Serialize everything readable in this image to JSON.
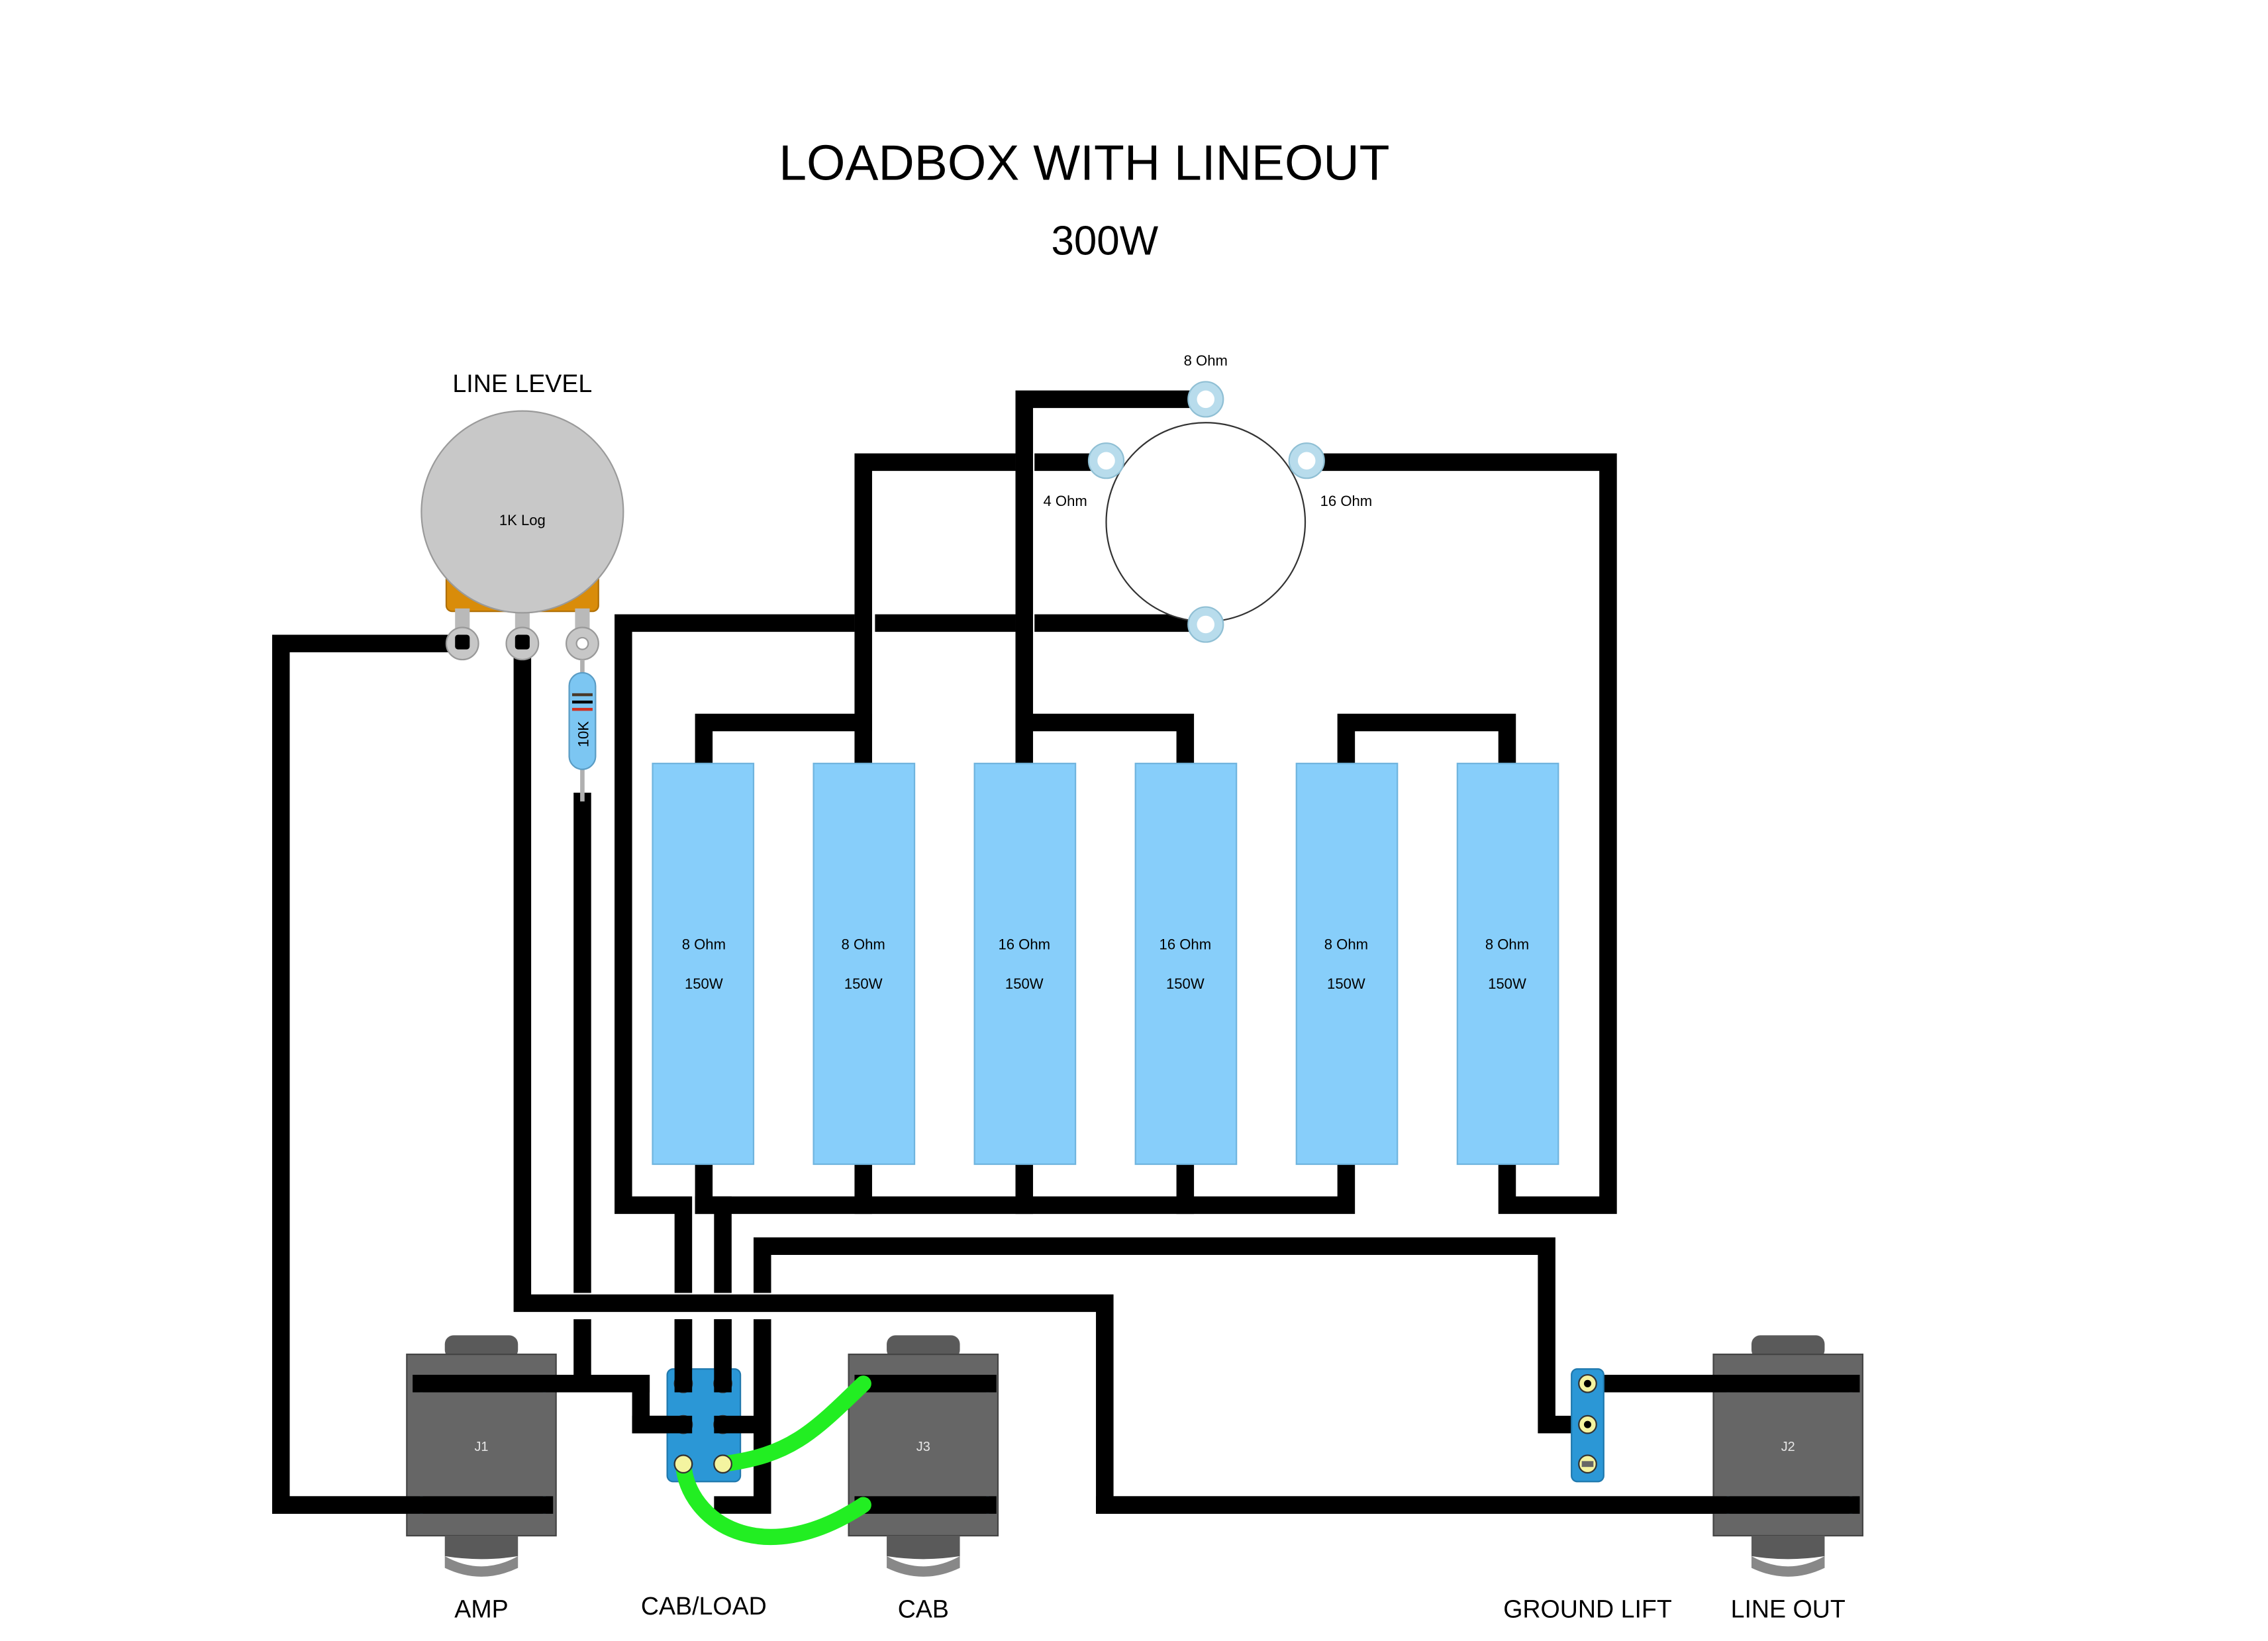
{
  "title": "LOADBOX WITH LINEOUT",
  "subtitle": "300W",
  "colors": {
    "wire": "#000000",
    "resistor_body": "#87cefa",
    "jack_body": "#666666",
    "switch_body": "#2b97d6",
    "jumper_wire": "#22ee22",
    "pot_body": "#c8c8c8",
    "pot_bracket": "#d98c0a",
    "selector_lug": "#b8dcec"
  },
  "pot": {
    "label": "LINE LEVEL",
    "value": "1K Log",
    "icon": "potentiometer-icon"
  },
  "small_resistor": {
    "value": "10K",
    "icon": "resistor-icon"
  },
  "selector_switch": {
    "icon": "rotary-switch-icon",
    "positions": {
      "top": "8 Ohm",
      "left": "4 Ohm",
      "right": "16 Ohm"
    }
  },
  "power_resistors": [
    {
      "ohms": "8 Ohm",
      "watts": "150W"
    },
    {
      "ohms": "8 Ohm",
      "watts": "150W"
    },
    {
      "ohms": "16 Ohm",
      "watts": "150W"
    },
    {
      "ohms": "16 Ohm",
      "watts": "150W"
    },
    {
      "ohms": "8 Ohm",
      "watts": "150W"
    },
    {
      "ohms": "8 Ohm",
      "watts": "150W"
    }
  ],
  "jacks": [
    {
      "ref": "J1",
      "label": "AMP"
    },
    {
      "ref": "J3",
      "label": "CAB"
    },
    {
      "ref": "J2",
      "label": "LINE OUT"
    }
  ],
  "switches": {
    "cab_load": {
      "label": "CAB/LOAD",
      "icon": "dpdt-switch-icon"
    },
    "ground_lift": {
      "label": "GROUND LIFT",
      "icon": "spdt-switch-icon"
    }
  }
}
